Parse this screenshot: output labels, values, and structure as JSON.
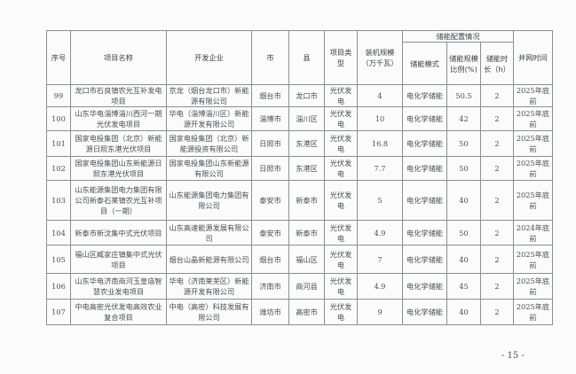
{
  "header": {
    "seq": "序号",
    "name": "项目名称",
    "company": "开发企业",
    "city": "市",
    "county": "县",
    "type": "项目类型",
    "capacity": "装机规模（万千瓦）",
    "storage_group": "储能配置情况",
    "storage_mode": "储能模式",
    "storage_ratio": "储能规模比例(%)",
    "storage_hours": "储能时长（h）",
    "grid_time": "并网时间"
  },
  "rows": [
    {
      "seq": "99",
      "name": "龙口市石良镇农光互补发电项目",
      "company": "京龙（烟台龙口市）新能源有限公司",
      "city": "烟台市",
      "county": "龙口市",
      "type": "光伏发电",
      "capacity": "4",
      "mode": "电化学储能",
      "ratio": "50.5",
      "hours": "2",
      "time": "2025年底前"
    },
    {
      "seq": "100",
      "name": "山东华电淄博淄川西河一期光伏发电项目",
      "company": "华电（淄博淄川区）新能源开发有限公司",
      "city": "淄博市",
      "county": "淄川区",
      "type": "光伏发电",
      "capacity": "10",
      "mode": "电化学储能",
      "ratio": "42",
      "hours": "2",
      "time": "2025年底前"
    },
    {
      "seq": "101",
      "name": "国家电投集团（北京）新能源日照东港光伏项目",
      "company": "国家电投集团（北京）新能源投资有限公司",
      "city": "日照市",
      "county": "东港区",
      "type": "光伏发电",
      "capacity": "16.8",
      "mode": "电化学储能",
      "ratio": "50",
      "hours": "2",
      "time": "2025年底前"
    },
    {
      "seq": "102",
      "name": "国家电投集团山东新能源日照东港光伏项目",
      "company": "国家电投集团山东新能源有限公司",
      "city": "日照市",
      "county": "东港区",
      "type": "光伏发电",
      "capacity": "7.7",
      "mode": "电化学储能",
      "ratio": "50",
      "hours": "2",
      "time": "2025年底前"
    },
    {
      "seq": "103",
      "name": "山东能源集团电力集团有限公司新泰石莱镇农光互补项目（一期）",
      "company": "山东能源集团电力集团有限公司",
      "city": "泰安市",
      "county": "新泰市",
      "type": "光伏发电",
      "capacity": "5",
      "mode": "电化学储能",
      "ratio": "40",
      "hours": "2",
      "time": "2025年底前"
    },
    {
      "seq": "104",
      "name": "新泰市新汶集中式光伏项目",
      "company": "山东高速能源发展有限公司",
      "city": "泰安市",
      "county": "新泰市",
      "type": "光伏发电",
      "capacity": "4.9",
      "mode": "电化学储能",
      "ratio": "50",
      "hours": "2",
      "time": "2024年底前"
    },
    {
      "seq": "105",
      "name": "福山区臧家庄镇集中式光伏项目",
      "company": "烟台山晶新能源有限公司",
      "city": "烟台市",
      "county": "福山区",
      "type": "光伏发电",
      "capacity": "7",
      "mode": "电化学储能",
      "ratio": "40",
      "hours": "2",
      "time": "2025年底前"
    },
    {
      "seq": "106",
      "name": "山东华电济南商河玉皇庙智慧农业发电项目",
      "company": "华电（济南莱芜区）新能源开发有限公司",
      "city": "济南市",
      "county": "商河县",
      "type": "光伏发电",
      "capacity": "4.9",
      "mode": "电化学储能",
      "ratio": "45",
      "hours": "2",
      "time": "2025年底前"
    },
    {
      "seq": "107",
      "name": "中电高密光伏发电高效农业复合项目",
      "company": "中电（高密）科技发展有限公司",
      "city": "潍坊市",
      "county": "高密市",
      "type": "光伏发电",
      "capacity": "9",
      "mode": "电化学储能",
      "ratio": "40",
      "hours": "2",
      "time": "2025年底前"
    }
  ],
  "page_number": "- 15 -"
}
